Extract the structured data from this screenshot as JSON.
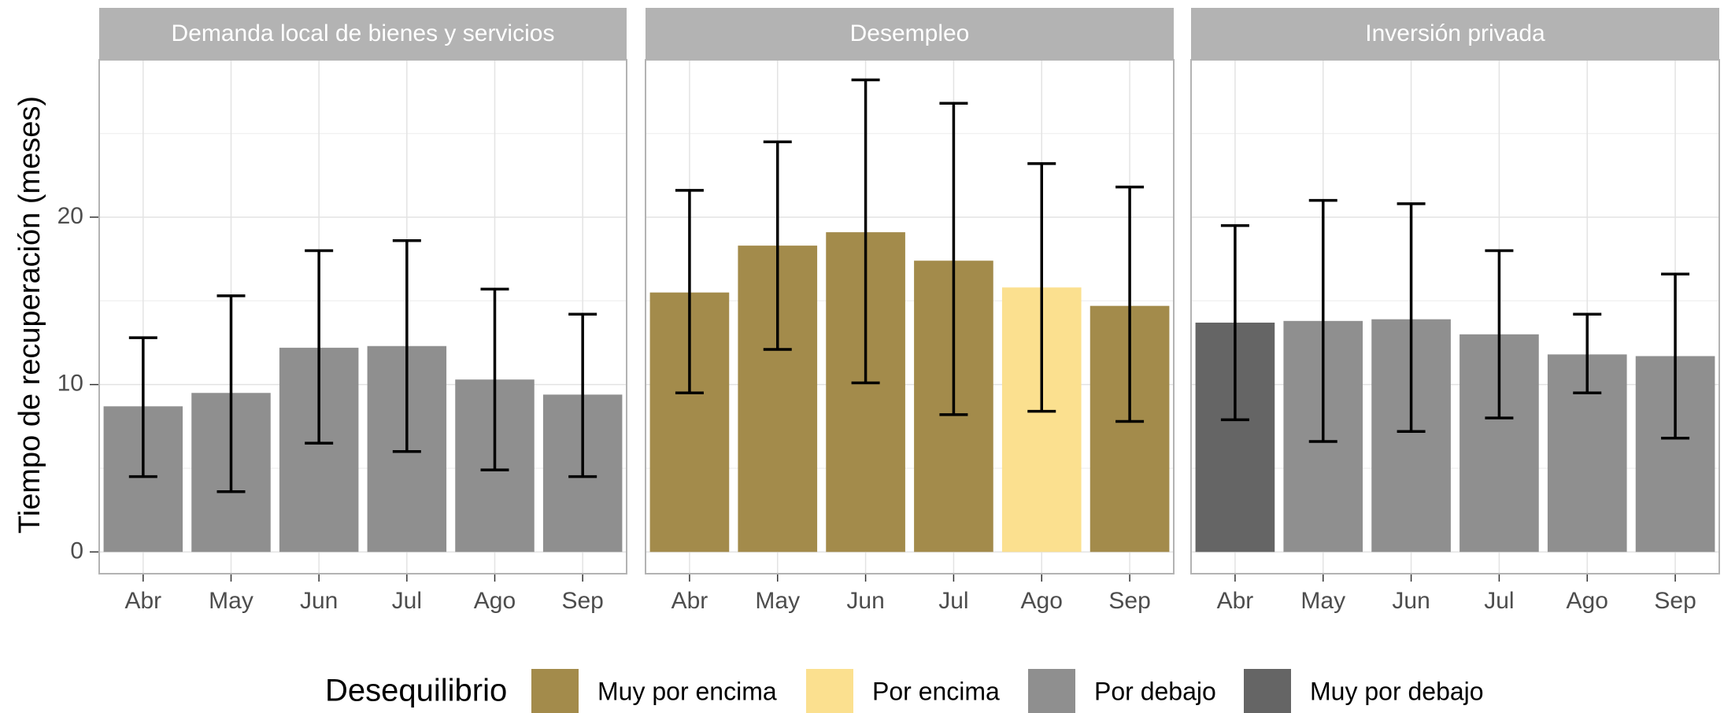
{
  "chart_data": {
    "y_label": "Tiempo de recuperación (meses)",
    "ylim": [
      -1.3,
      29.4
    ],
    "yticks": [
      0,
      10,
      20
    ],
    "yminor": [
      5,
      15,
      25
    ],
    "grid": true,
    "legend": {
      "title": "Desequilibrio",
      "position": "bottom",
      "entries": [
        {
          "name": "Muy por encima",
          "color": "#a38b4b"
        },
        {
          "name": "Por encima",
          "color": "#fbe08f"
        },
        {
          "name": "Por debajo",
          "color": "#8f8f8f"
        },
        {
          "name": "Muy por debajo",
          "color": "#656565"
        }
      ]
    },
    "panels": [
      {
        "type": "bar",
        "title": "Demanda local de bienes y servicios",
        "categories": [
          "Abr",
          "May",
          "Jun",
          "Jul",
          "Ago",
          "Sep"
        ],
        "values": [
          8.7,
          9.5,
          12.2,
          12.3,
          10.3,
          9.4
        ],
        "lower": [
          4.5,
          3.6,
          6.5,
          6.0,
          4.9,
          4.5
        ],
        "upper": [
          12.8,
          15.3,
          18.0,
          18.6,
          15.7,
          14.2
        ],
        "colors": [
          "#8f8f8f",
          "#8f8f8f",
          "#8f8f8f",
          "#8f8f8f",
          "#8f8f8f",
          "#8f8f8f"
        ]
      },
      {
        "type": "bar",
        "title": "Desempleo",
        "categories": [
          "Abr",
          "May",
          "Jun",
          "Jul",
          "Ago",
          "Sep"
        ],
        "values": [
          15.5,
          18.3,
          19.1,
          17.4,
          15.8,
          14.7
        ],
        "lower": [
          9.5,
          12.1,
          10.1,
          8.2,
          8.4,
          7.8
        ],
        "upper": [
          21.6,
          24.5,
          28.2,
          26.8,
          23.2,
          21.8
        ],
        "colors": [
          "#a38b4b",
          "#a38b4b",
          "#a38b4b",
          "#a38b4b",
          "#fbe08f",
          "#a38b4b"
        ]
      },
      {
        "type": "bar",
        "title": "Inversión privada",
        "categories": [
          "Abr",
          "May",
          "Jun",
          "Jul",
          "Ago",
          "Sep"
        ],
        "values": [
          13.7,
          13.8,
          13.9,
          13.0,
          11.8,
          11.7
        ],
        "lower": [
          7.9,
          6.6,
          7.2,
          8.0,
          9.5,
          6.8
        ],
        "upper": [
          19.5,
          21.0,
          20.8,
          18.0,
          14.2,
          16.6
        ],
        "colors": [
          "#656565",
          "#8f8f8f",
          "#8f8f8f",
          "#8f8f8f",
          "#8f8f8f",
          "#8f8f8f"
        ]
      }
    ]
  }
}
